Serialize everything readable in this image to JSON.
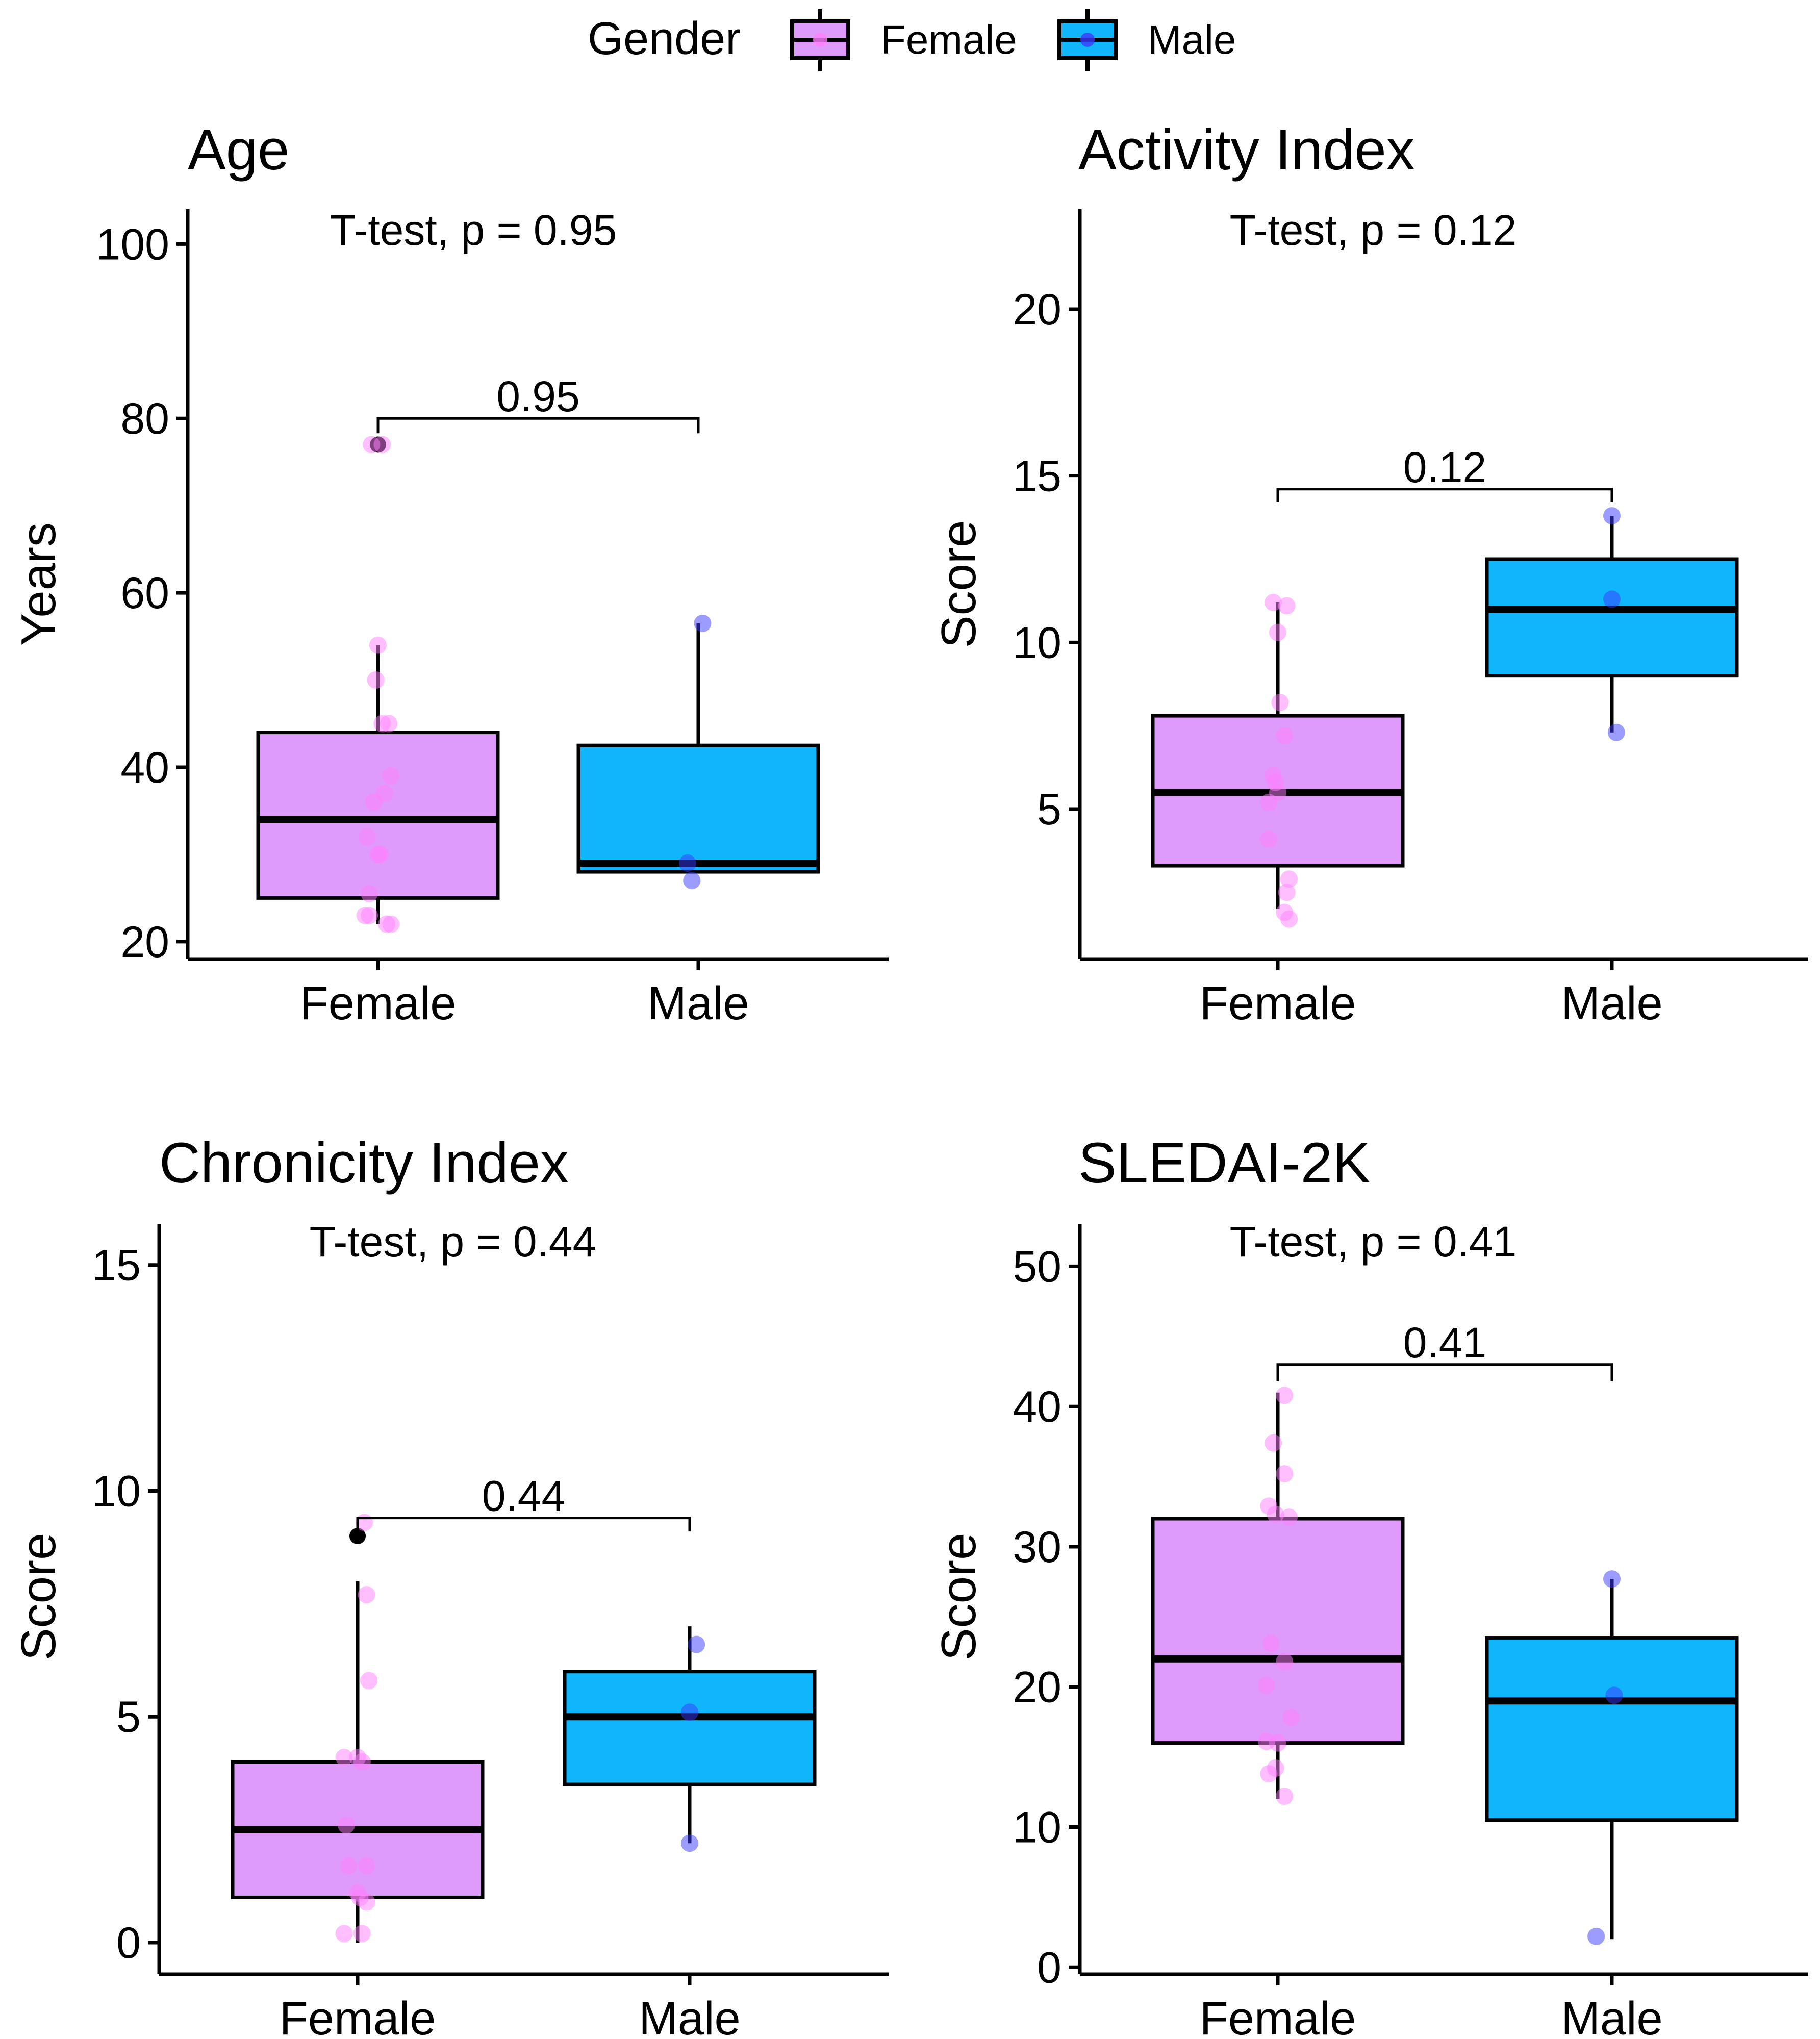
{
  "legend": {
    "title": "Gender",
    "position": "top",
    "items": [
      {
        "label": "Female",
        "color": "#df9bfb"
      },
      {
        "label": "Male",
        "color": "#10b5fb"
      }
    ]
  },
  "chart_data": [
    {
      "type": "box",
      "title": "Age",
      "subtitle": "T-test, p = 0.95",
      "ylabel": "Years",
      "ylim": [
        18,
        104
      ],
      "yticks": [
        20,
        40,
        60,
        80,
        100
      ],
      "categories": [
        "Female",
        "Male"
      ],
      "bracket": {
        "label": "0.95",
        "y": 80,
        "drop": 1.7
      },
      "boxes": [
        {
          "min": 22,
          "q1": 25,
          "median": 34,
          "q3": 44,
          "max": 54,
          "outliers": [
            77
          ]
        },
        {
          "min": 28,
          "q1": 28,
          "median": 29,
          "q3": 42.5,
          "max": 56.5,
          "outliers": []
        }
      ],
      "points": [
        [
          [
            -0.03,
            77
          ],
          [
            0.02,
            77
          ],
          [
            0.0,
            54
          ],
          [
            -0.01,
            50
          ],
          [
            0.02,
            45
          ],
          [
            0.05,
            45
          ],
          [
            0.06,
            39
          ],
          [
            -0.02,
            36
          ],
          [
            0.03,
            37
          ],
          [
            -0.05,
            32
          ],
          [
            0.0,
            30
          ],
          [
            0.01,
            30
          ],
          [
            -0.04,
            25.5
          ],
          [
            -0.06,
            23
          ],
          [
            -0.04,
            23
          ],
          [
            0.04,
            22
          ],
          [
            0.06,
            22
          ]
        ],
        [
          [
            0.02,
            56.5
          ],
          [
            -0.05,
            29
          ],
          [
            -0.03,
            27
          ]
        ]
      ]
    },
    {
      "type": "box",
      "title": "Activity Index",
      "subtitle": "T-test, p = 0.12",
      "ylabel": "Score",
      "ylim": [
        0.5,
        23
      ],
      "yticks": [
        5,
        10,
        15,
        20
      ],
      "categories": [
        "Female",
        "Male"
      ],
      "bracket": {
        "label": "0.12",
        "y": 14.6,
        "drop": 0.4
      },
      "boxes": [
        {
          "min": 2,
          "q1": 3.3,
          "median": 5.5,
          "q3": 7.8,
          "max": 11.2,
          "outliers": []
        },
        {
          "min": 7.3,
          "q1": 9,
          "median": 11,
          "q3": 12.5,
          "max": 13.8,
          "outliers": []
        }
      ],
      "points": [
        [
          [
            -0.02,
            11.2
          ],
          [
            0.04,
            11.1
          ],
          [
            0.0,
            10.3
          ],
          [
            0.01,
            8.2
          ],
          [
            0.03,
            7.2
          ],
          [
            -0.02,
            6
          ],
          [
            -0.01,
            5.8
          ],
          [
            0.0,
            5.5
          ],
          [
            -0.04,
            5.2
          ],
          [
            -0.04,
            4.1
          ],
          [
            0.05,
            2.9
          ],
          [
            0.04,
            2.5
          ],
          [
            0.03,
            1.9
          ],
          [
            0.05,
            1.7
          ]
        ],
        [
          [
            0.0,
            13.8
          ],
          [
            0.0,
            11.3
          ],
          [
            0.02,
            7.3
          ]
        ]
      ]
    },
    {
      "type": "box",
      "title": "Chronicity Index",
      "subtitle": "T-test, p = 0.44",
      "ylabel": "Score",
      "ylim": [
        -0.7,
        15.9
      ],
      "yticks": [
        0,
        5,
        10,
        15
      ],
      "categories": [
        "Female",
        "Male"
      ],
      "bracket": {
        "label": "0.44",
        "y": 9.4,
        "drop": 0.3
      },
      "boxes": [
        {
          "min": 0,
          "q1": 1,
          "median": 2.5,
          "q3": 4,
          "max": 8,
          "outliers": [
            9
          ]
        },
        {
          "min": 2.2,
          "q1": 3.5,
          "median": 5,
          "q3": 6,
          "max": 7,
          "outliers": []
        }
      ],
      "points": [
        [
          [
            0.03,
            9.3
          ],
          [
            0.04,
            7.7
          ],
          [
            0.05,
            5.8
          ],
          [
            -0.06,
            4.1
          ],
          [
            0.0,
            4.1
          ],
          [
            0.02,
            4.0
          ],
          [
            -0.05,
            2.6
          ],
          [
            -0.04,
            1.7
          ],
          [
            0.04,
            1.7
          ],
          [
            0.0,
            1.1
          ],
          [
            0.01,
            1.0
          ],
          [
            0.04,
            0.9
          ],
          [
            -0.06,
            0.2
          ],
          [
            0.02,
            0.2
          ]
        ],
        [
          [
            0.03,
            6.6
          ],
          [
            0.0,
            5.1
          ],
          [
            0.0,
            2.2
          ]
        ]
      ]
    },
    {
      "type": "box",
      "title": "SLEDAI-2K",
      "subtitle": "T-test, p = 0.41",
      "ylabel": "Score",
      "ylim": [
        -0.5,
        53
      ],
      "yticks": [
        0,
        10,
        20,
        30,
        40,
        50
      ],
      "categories": [
        "Female",
        "Male"
      ],
      "bracket": {
        "label": "0.41",
        "y": 43,
        "drop": 1.2
      },
      "boxes": [
        {
          "min": 12,
          "q1": 16,
          "median": 22,
          "q3": 32,
          "max": 41,
          "outliers": []
        },
        {
          "min": 2,
          "q1": 10.5,
          "median": 19,
          "q3": 23.5,
          "max": 27.7,
          "outliers": []
        }
      ],
      "points": [
        [
          [
            0.03,
            40.8
          ],
          [
            -0.02,
            37.4
          ],
          [
            0.03,
            35.2
          ],
          [
            -0.04,
            32.9
          ],
          [
            -0.01,
            32.3
          ],
          [
            0.05,
            32.1
          ],
          [
            -0.03,
            23.1
          ],
          [
            0.03,
            21.8
          ],
          [
            -0.05,
            20.1
          ],
          [
            0.06,
            17.8
          ],
          [
            -0.05,
            16.1
          ],
          [
            0.0,
            16.0
          ],
          [
            -0.04,
            13.8
          ],
          [
            -0.01,
            14.2
          ],
          [
            0.03,
            12.2
          ]
        ],
        [
          [
            0.0,
            27.7
          ],
          [
            0.01,
            19.4
          ],
          [
            -0.07,
            2.2
          ]
        ]
      ]
    }
  ]
}
